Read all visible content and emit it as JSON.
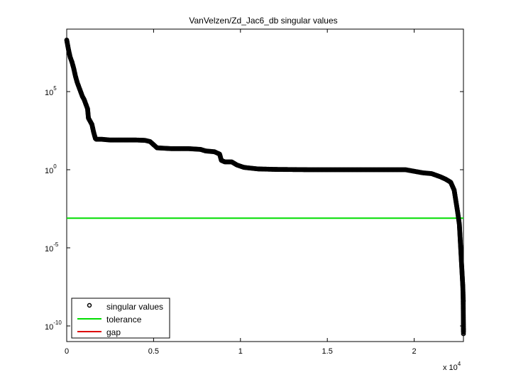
{
  "chart_data": {
    "type": "scatter",
    "title": "VanVelzen/Zd_Jac6_db singular values",
    "xlabel": "",
    "ylabel": "",
    "x_scale_label": "x 10",
    "x_scale_exponent": "4",
    "xlim": [
      0,
      22835
    ],
    "ylim_log10": [
      -11,
      9
    ],
    "y_scale": "log",
    "x_ticks": [
      {
        "value": 0,
        "label": "0"
      },
      {
        "value": 5000,
        "label": "0.5"
      },
      {
        "value": 10000,
        "label": "1"
      },
      {
        "value": 15000,
        "label": "1.5"
      },
      {
        "value": 20000,
        "label": "2"
      }
    ],
    "y_ticks": [
      {
        "exp": 5,
        "base": "10",
        "sup": "5"
      },
      {
        "exp": 0,
        "base": "10",
        "sup": "0"
      },
      {
        "exp": -5,
        "base": "10",
        "sup": "-5"
      },
      {
        "exp": -10,
        "base": "10",
        "sup": "-10"
      }
    ],
    "series": [
      {
        "name": "singular values",
        "marker": "circle",
        "color": "#000000",
        "points_log10": [
          [
            0,
            8.3
          ],
          [
            50,
            8.0
          ],
          [
            100,
            7.7
          ],
          [
            200,
            7.2
          ],
          [
            300,
            6.9
          ],
          [
            400,
            6.5
          ],
          [
            500,
            6.0
          ],
          [
            600,
            5.6
          ],
          [
            700,
            5.3
          ],
          [
            800,
            5.0
          ],
          [
            900,
            4.7
          ],
          [
            1000,
            4.5
          ],
          [
            1100,
            4.2
          ],
          [
            1200,
            3.9
          ],
          [
            1250,
            3.3
          ],
          [
            1350,
            3.1
          ],
          [
            1450,
            2.9
          ],
          [
            1550,
            2.4
          ],
          [
            1650,
            2.0
          ],
          [
            1700,
            1.95
          ],
          [
            2000,
            1.95
          ],
          [
            2500,
            1.9
          ],
          [
            3000,
            1.9
          ],
          [
            3500,
            1.9
          ],
          [
            4000,
            1.9
          ],
          [
            4500,
            1.88
          ],
          [
            4800,
            1.8
          ],
          [
            5000,
            1.6
          ],
          [
            5200,
            1.4
          ],
          [
            6000,
            1.35
          ],
          [
            7000,
            1.35
          ],
          [
            7700,
            1.3
          ],
          [
            8000,
            1.2
          ],
          [
            8500,
            1.15
          ],
          [
            8800,
            1.0
          ],
          [
            8900,
            0.6
          ],
          [
            9100,
            0.5
          ],
          [
            9500,
            0.5
          ],
          [
            9800,
            0.3
          ],
          [
            10200,
            0.15
          ],
          [
            11000,
            0.05
          ],
          [
            12000,
            0.02
          ],
          [
            14000,
            0.0
          ],
          [
            16000,
            0.0
          ],
          [
            18000,
            0.0
          ],
          [
            19500,
            0.0
          ],
          [
            20000,
            -0.1
          ],
          [
            20500,
            -0.2
          ],
          [
            21000,
            -0.25
          ],
          [
            21500,
            -0.45
          ],
          [
            21800,
            -0.6
          ],
          [
            22100,
            -0.8
          ],
          [
            22300,
            -1.3
          ],
          [
            22400,
            -2.0
          ],
          [
            22500,
            -2.7
          ],
          [
            22600,
            -3.5
          ],
          [
            22650,
            -4.5
          ],
          [
            22700,
            -5.5
          ],
          [
            22750,
            -6.5
          ],
          [
            22800,
            -7.5
          ],
          [
            22820,
            -8.3
          ],
          [
            22835,
            -10.4
          ]
        ]
      },
      {
        "name": "tolerance",
        "color": "#00dd00",
        "y_log10": -3.1
      },
      {
        "name": "gap",
        "color": "#dd0000"
      }
    ],
    "legend": {
      "placement": "bottom-left",
      "entries": [
        "singular values",
        "tolerance",
        "gap"
      ]
    },
    "grid": false
  }
}
